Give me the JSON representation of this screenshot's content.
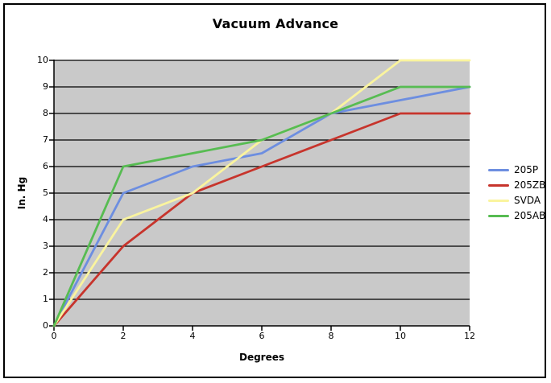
{
  "title": "Vacuum Advance",
  "chart_data": {
    "type": "line",
    "title": "Vacuum Advance",
    "xlabel": "Degrees",
    "ylabel": "In. Hg",
    "x": [
      0,
      2,
      4,
      6,
      8,
      10,
      12
    ],
    "series": [
      {
        "name": "205P",
        "color": "#6D8EE0",
        "values": [
          0,
          5,
          6,
          6.5,
          8,
          8.5,
          9
        ]
      },
      {
        "name": "205ZB",
        "color": "#C7342C",
        "values": [
          0,
          3,
          5,
          6,
          7,
          8,
          8
        ]
      },
      {
        "name": "SVDA",
        "color": "#FAF49E",
        "values": [
          0,
          4,
          5,
          7,
          8,
          10,
          10
        ]
      },
      {
        "name": "205AB",
        "color": "#57BC52",
        "values": [
          0,
          6,
          6.5,
          7,
          8,
          9,
          9
        ]
      }
    ],
    "xlim": [
      0,
      12
    ],
    "ylim": [
      0,
      10
    ],
    "x_ticks": [
      "0",
      "2",
      "4",
      "6",
      "8",
      "10",
      "12"
    ],
    "y_ticks": [
      "0",
      "1",
      "2",
      "3",
      "4",
      "5",
      "6",
      "7",
      "8",
      "9",
      "10"
    ],
    "grid": "horizontal",
    "legend_position": "right",
    "plot_bg": "#C9C9C9",
    "grid_color": "#000000",
    "axis_color": "#000000"
  }
}
